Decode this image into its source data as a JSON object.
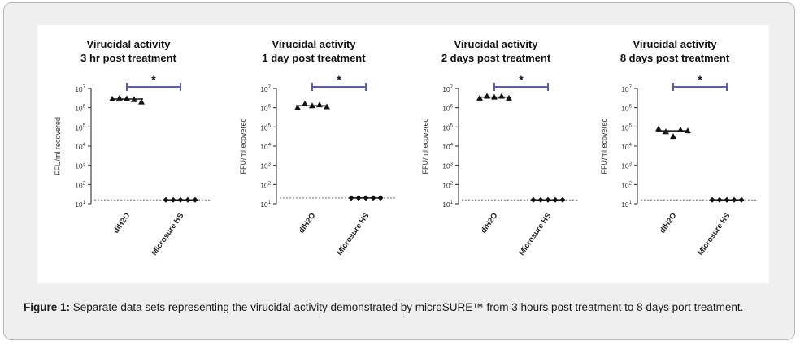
{
  "figure_caption": {
    "label": "Figure 1:",
    "text": "Separate data sets representing the virucidal activity demonstrated by microSURE™ from 3 hours post treatment to 8 days port treatment."
  },
  "colors": {
    "bracket": "#5b5ea6",
    "marker": "#111111",
    "dotted_line": "#666666"
  },
  "chart_data": [
    {
      "type": "scatter",
      "title_line1": "Virucidal activity",
      "title_line2": "3 hr post treatment",
      "ylabel": "FFU/ml recovered",
      "yscale": "log",
      "ylim_log10": [
        1,
        7
      ],
      "y_ticks": [
        {
          "base": "10",
          "exp": "7"
        },
        {
          "base": "10",
          "exp": "6"
        },
        {
          "base": "10",
          "exp": "5"
        },
        {
          "base": "10",
          "exp": "4"
        },
        {
          "base": "10",
          "exp": "3"
        },
        {
          "base": "10",
          "exp": "2"
        },
        {
          "base": "10",
          "exp": "1"
        }
      ],
      "categories": [
        "diH2O",
        "Microsure HS"
      ],
      "points_log10": [
        [
          6.45,
          6.5,
          6.47,
          6.42,
          6.3
        ],
        [
          1.2,
          1.2,
          1.2,
          1.2,
          1.2
        ]
      ],
      "detection_limit_log10": 1.2,
      "significance": "*"
    },
    {
      "type": "scatter",
      "title_line1": "Virucidal activity",
      "title_line2": "1 day post treatment",
      "ylabel": "FFU/ml ecovered",
      "yscale": "log",
      "ylim_log10": [
        1,
        7
      ],
      "y_ticks": [
        {
          "base": "10",
          "exp": "7"
        },
        {
          "base": "10",
          "exp": "6"
        },
        {
          "base": "10",
          "exp": "5"
        },
        {
          "base": "10",
          "exp": "4"
        },
        {
          "base": "10",
          "exp": "3"
        },
        {
          "base": "10",
          "exp": "2"
        },
        {
          "base": "10",
          "exp": "1"
        }
      ],
      "categories": [
        "diH2O",
        "Microsure HS"
      ],
      "points_log10": [
        [
          6.0,
          6.2,
          6.1,
          6.15,
          6.05
        ],
        [
          1.3,
          1.3,
          1.3,
          1.3,
          1.3
        ]
      ],
      "detection_limit_log10": 1.3,
      "significance": "*"
    },
    {
      "type": "scatter",
      "title_line1": "Virucidal activity",
      "title_line2": "2 days post treatment",
      "ylabel": "FFU/ml ecovered",
      "yscale": "log",
      "ylim_log10": [
        1,
        7
      ],
      "y_ticks": [
        {
          "base": "10",
          "exp": "7"
        },
        {
          "base": "10",
          "exp": "6"
        },
        {
          "base": "10",
          "exp": "5"
        },
        {
          "base": "10",
          "exp": "4"
        },
        {
          "base": "10",
          "exp": "3"
        },
        {
          "base": "10",
          "exp": "2"
        },
        {
          "base": "10",
          "exp": "1"
        }
      ],
      "categories": [
        "diH2O",
        "Microsure HS"
      ],
      "points_log10": [
        [
          6.5,
          6.6,
          6.55,
          6.6,
          6.5
        ],
        [
          1.2,
          1.2,
          1.2,
          1.2,
          1.2
        ]
      ],
      "detection_limit_log10": 1.2,
      "significance": "*"
    },
    {
      "type": "scatter",
      "title_line1": "Virucidal activity",
      "title_line2": "8 days post treatment",
      "ylabel": "FFU/ml ecovered",
      "yscale": "log",
      "ylim_log10": [
        1,
        7
      ],
      "y_ticks": [
        {
          "base": "10",
          "exp": "7"
        },
        {
          "base": "10",
          "exp": "6"
        },
        {
          "base": "10",
          "exp": "5"
        },
        {
          "base": "10",
          "exp": "4"
        },
        {
          "base": "10",
          "exp": "3"
        },
        {
          "base": "10",
          "exp": "2"
        },
        {
          "base": "10",
          "exp": "1"
        }
      ],
      "categories": [
        "diH2O",
        "Microsure HS"
      ],
      "points_log10": [
        [
          4.9,
          4.75,
          4.5,
          4.85,
          4.8
        ],
        [
          1.2,
          1.2,
          1.2,
          1.2,
          1.2
        ]
      ],
      "detection_limit_log10": 1.2,
      "significance": "*"
    }
  ]
}
